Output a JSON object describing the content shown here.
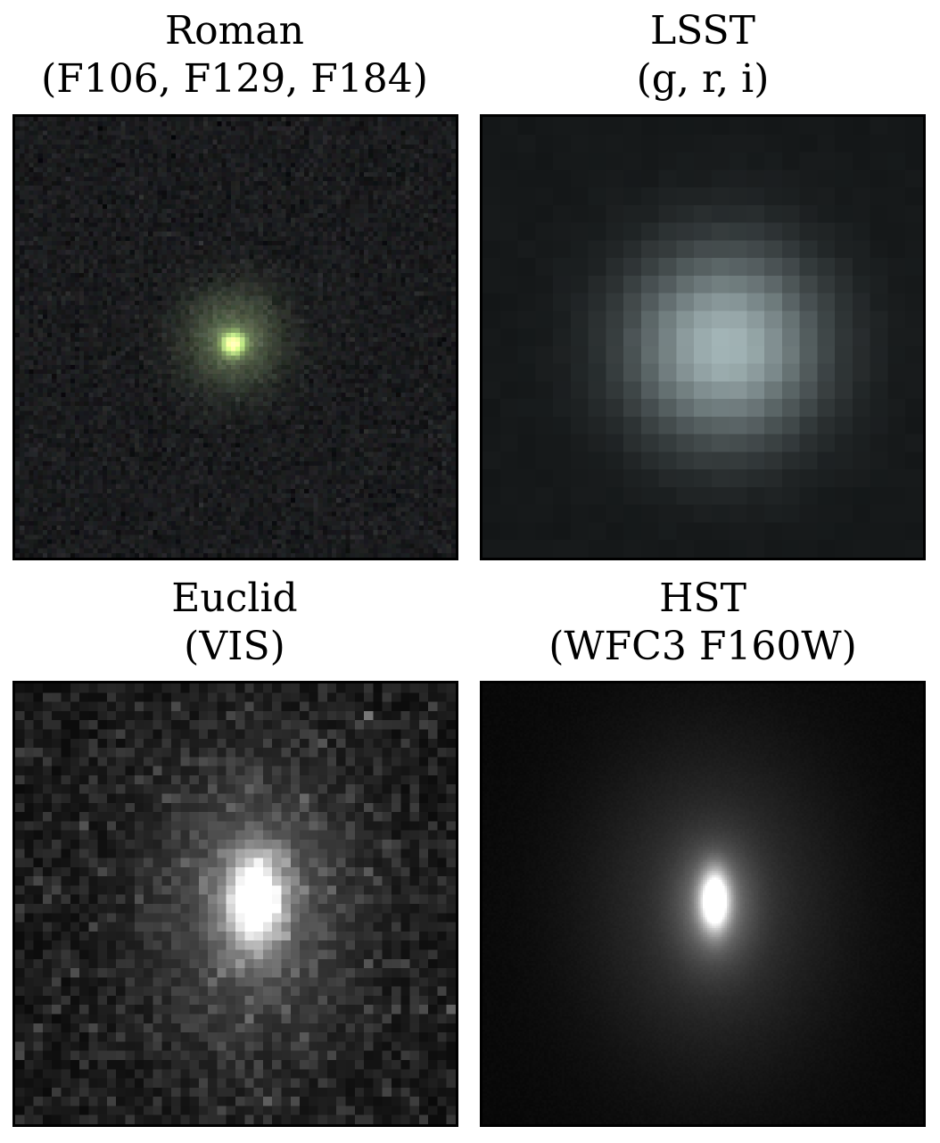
{
  "panels": [
    {
      "id": "roman",
      "telescope": "Roman",
      "filters": "(F106, F129, F184)",
      "colors": {
        "background": "#1a1b1d",
        "core": "#b8e890",
        "halo": "#7a8a6a"
      }
    },
    {
      "id": "lsst",
      "telescope": "LSST",
      "filters": "(g, r, i)",
      "colors": {
        "background": "#151819",
        "core": "#a4b6b8"
      }
    },
    {
      "id": "euclid",
      "telescope": "Euclid",
      "filters": "(VIS)",
      "colors": {
        "background": "#0a0a0a",
        "core": "#ffffff"
      }
    },
    {
      "id": "hst",
      "telescope": "HST",
      "filters": "(WFC3 F160W)",
      "colors": {
        "background": "#080808",
        "core": "#ffffff"
      }
    }
  ]
}
